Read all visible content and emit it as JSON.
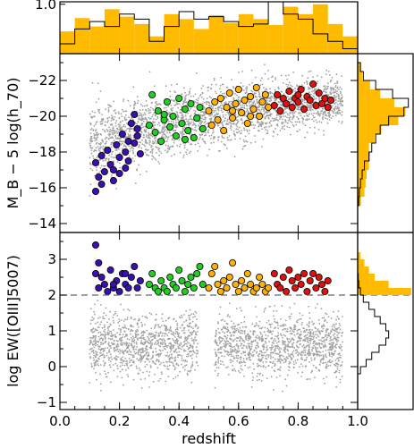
{
  "chart_data": [
    {
      "panel": "top-histogram",
      "type": "histogram",
      "xlim": [
        0.0,
        1.0
      ],
      "ylim": [
        0.0,
        1.05
      ],
      "y_ticks": [
        {
          "v": 1.0,
          "label": "1.0"
        }
      ],
      "bin_edges": [
        0.0,
        0.05,
        0.1,
        0.15,
        0.2,
        0.25,
        0.3,
        0.35,
        0.4,
        0.45,
        0.5,
        0.55,
        0.6,
        0.65,
        0.7,
        0.75,
        0.8,
        0.85,
        0.9,
        0.95,
        1.0
      ],
      "series": [
        {
          "fill": "#FFBB00",
          "values": [
            0.45,
            0.72,
            0.55,
            0.9,
            0.75,
            0.6,
            0.35,
            0.8,
            0.7,
            0.5,
            0.78,
            0.62,
            0.8,
            0.7,
            0.58,
            0.95,
            0.8,
            1.0,
            0.6,
            0.35
          ]
        },
        {
          "stroke": "#000000",
          "values": [
            0.2,
            0.5,
            0.65,
            0.55,
            0.8,
            0.7,
            0.25,
            0.55,
            0.85,
            0.7,
            0.75,
            0.65,
            0.55,
            0.6,
            1.05,
            0.8,
            0.7,
            0.4,
            0.25,
            0.1
          ]
        }
      ]
    },
    {
      "panel": "absolute-magnitude-scatter",
      "type": "scatter",
      "xlim": [
        0.0,
        1.0
      ],
      "ylim": [
        -13.5,
        -23.5
      ],
      "ylabel": "M_B − 5 log(h_70)",
      "y_ticks": [
        {
          "v": -22,
          "label": "−22"
        },
        {
          "v": -20,
          "label": "−20"
        },
        {
          "v": -18,
          "label": "−18"
        },
        {
          "v": -16,
          "label": "−16"
        },
        {
          "v": -14,
          "label": "−14"
        }
      ],
      "background_color": "#A0A0A0",
      "series": [
        {
          "color": "#3A10B0",
          "xrange": [
            0.11,
            0.27
          ],
          "points": [
            [
              0.12,
              -17.4
            ],
            [
              0.13,
              -16.6
            ],
            [
              0.12,
              -15.8
            ],
            [
              0.14,
              -17.8
            ],
            [
              0.15,
              -16.9
            ],
            [
              0.16,
              -18.1
            ],
            [
              0.17,
              -17.3
            ],
            [
              0.18,
              -16.4
            ],
            [
              0.19,
              -18.4
            ],
            [
              0.2,
              -17.7
            ],
            [
              0.21,
              -19.0
            ],
            [
              0.22,
              -17.1
            ],
            [
              0.23,
              -18.6
            ],
            [
              0.24,
              -19.6
            ],
            [
              0.25,
              -20.1
            ],
            [
              0.26,
              -18.9
            ],
            [
              0.27,
              -17.9
            ],
            [
              0.18,
              -17.0
            ],
            [
              0.22,
              -18.0
            ],
            [
              0.25,
              -18.5
            ],
            [
              0.14,
              -16.2
            ],
            [
              0.2,
              -16.8
            ],
            [
              0.23,
              -17.5
            ],
            [
              0.26,
              -19.3
            ]
          ]
        },
        {
          "color": "#20D020",
          "xrange": [
            0.3,
            0.48
          ],
          "points": [
            [
              0.3,
              -19.5
            ],
            [
              0.31,
              -21.2
            ],
            [
              0.32,
              -19.1
            ],
            [
              0.33,
              -20.3
            ],
            [
              0.34,
              -18.6
            ],
            [
              0.35,
              -19.8
            ],
            [
              0.36,
              -20.8
            ],
            [
              0.37,
              -19.4
            ],
            [
              0.38,
              -20.0
            ],
            [
              0.39,
              -18.9
            ],
            [
              0.4,
              -21.0
            ],
            [
              0.41,
              -19.6
            ],
            [
              0.42,
              -20.4
            ],
            [
              0.43,
              -19.2
            ],
            [
              0.44,
              -20.7
            ],
            [
              0.45,
              -18.8
            ],
            [
              0.46,
              -19.9
            ],
            [
              0.47,
              -20.5
            ],
            [
              0.48,
              -19.3
            ],
            [
              0.35,
              -20.1
            ],
            [
              0.42,
              -18.7
            ]
          ]
        },
        {
          "color": "#FFB000",
          "xrange": [
            0.5,
            0.7
          ],
          "points": [
            [
              0.5,
              -20.3
            ],
            [
              0.51,
              -19.5
            ],
            [
              0.52,
              -20.8
            ],
            [
              0.53,
              -19.8
            ],
            [
              0.54,
              -21.0
            ],
            [
              0.55,
              -19.2
            ],
            [
              0.56,
              -20.5
            ],
            [
              0.57,
              -21.3
            ],
            [
              0.58,
              -19.9
            ],
            [
              0.59,
              -20.7
            ],
            [
              0.6,
              -21.5
            ],
            [
              0.61,
              -20.2
            ],
            [
              0.62,
              -20.9
            ],
            [
              0.63,
              -19.6
            ],
            [
              0.64,
              -21.1
            ],
            [
              0.65,
              -20.4
            ],
            [
              0.66,
              -21.6
            ],
            [
              0.67,
              -20.0
            ],
            [
              0.68,
              -20.8
            ],
            [
              0.69,
              -21.2
            ],
            [
              0.7,
              -20.5
            ],
            [
              0.58,
              -20.3
            ],
            [
              0.64,
              -20.0
            ]
          ]
        },
        {
          "color": "#E01010",
          "xrange": [
            0.72,
            0.92
          ],
          "points": [
            [
              0.72,
              -20.6
            ],
            [
              0.73,
              -21.2
            ],
            [
              0.74,
              -20.3
            ],
            [
              0.75,
              -21.0
            ],
            [
              0.76,
              -20.7
            ],
            [
              0.77,
              -21.4
            ],
            [
              0.78,
              -20.5
            ],
            [
              0.79,
              -21.0
            ],
            [
              0.8,
              -20.8
            ],
            [
              0.81,
              -21.5
            ],
            [
              0.82,
              -20.4
            ],
            [
              0.83,
              -21.1
            ],
            [
              0.84,
              -20.9
            ],
            [
              0.85,
              -21.8
            ],
            [
              0.86,
              -20.6
            ],
            [
              0.87,
              -21.3
            ],
            [
              0.88,
              -20.7
            ],
            [
              0.89,
              -21.0
            ],
            [
              0.9,
              -20.5
            ],
            [
              0.91,
              -20.9
            ],
            [
              0.8,
              -21.2
            ]
          ]
        }
      ]
    },
    {
      "panel": "magnitude-histogram",
      "type": "histogram",
      "orientation": "horizontal",
      "ylim": [
        -13.5,
        -23.5
      ],
      "bin_edges": [
        -23.0,
        -22.5,
        -22.0,
        -21.5,
        -21.0,
        -20.5,
        -20.0,
        -19.5,
        -19.0,
        -18.5,
        -18.0,
        -17.5,
        -17.0,
        -16.5,
        -16.0,
        -15.5,
        -15.0
      ],
      "series": [
        {
          "fill": "#FFBB00",
          "values": [
            0.05,
            0.08,
            0.22,
            0.4,
            0.65,
            0.85,
            0.72,
            0.42,
            0.3,
            0.2,
            0.22,
            0.2,
            0.16,
            0.14,
            0.12,
            0.06
          ]
        },
        {
          "stroke": "#000000",
          "values": [
            0.05,
            0.1,
            0.32,
            0.62,
            0.9,
            0.82,
            0.55,
            0.4,
            0.32,
            0.25,
            0.2,
            0.12,
            0.08,
            0.05,
            0.03,
            0.02
          ]
        }
      ]
    },
    {
      "panel": "equivalent-width-scatter",
      "type": "scatter",
      "xlim": [
        0.0,
        1.0
      ],
      "ylim": [
        -1.2,
        3.75
      ],
      "xlabel": "redshift",
      "ylabel": "log EW([OIII]5007)",
      "x_ticks": [
        {
          "v": 0.0,
          "label": "0.0"
        },
        {
          "v": 0.2,
          "label": "0.2"
        },
        {
          "v": 0.4,
          "label": "0.4"
        },
        {
          "v": 0.6,
          "label": "0.6"
        },
        {
          "v": 0.8,
          "label": "0.8"
        },
        {
          "v": 1.0,
          "label": "1.0"
        }
      ],
      "y_ticks": [
        {
          "v": 3,
          "label": "3"
        },
        {
          "v": 2,
          "label": "2"
        },
        {
          "v": 1,
          "label": "1"
        },
        {
          "v": 0,
          "label": "0"
        },
        {
          "v": -1,
          "label": "−1"
        }
      ],
      "reference_line": {
        "y": 2.0,
        "style": "dashed"
      },
      "background_color": "#A0A0A0",
      "series": [
        {
          "color": "#3A10B0",
          "xrange": [
            0.11,
            0.27
          ],
          "points": [
            [
              0.12,
              3.4
            ],
            [
              0.12,
              2.6
            ],
            [
              0.13,
              2.2
            ],
            [
              0.14,
              2.5
            ],
            [
              0.15,
              2.3
            ],
            [
              0.16,
              2.1
            ],
            [
              0.17,
              2.7
            ],
            [
              0.18,
              2.2
            ],
            [
              0.19,
              2.4
            ],
            [
              0.2,
              2.1
            ],
            [
              0.21,
              2.6
            ],
            [
              0.22,
              2.3
            ],
            [
              0.23,
              2.2
            ],
            [
              0.24,
              2.5
            ],
            [
              0.25,
              2.8
            ],
            [
              0.26,
              2.2
            ],
            [
              0.27,
              2.4
            ],
            [
              0.13,
              2.9
            ],
            [
              0.18,
              2.3
            ],
            [
              0.22,
              2.6
            ]
          ]
        },
        {
          "color": "#20D020",
          "xrange": [
            0.3,
            0.48
          ],
          "points": [
            [
              0.3,
              2.3
            ],
            [
              0.31,
              2.6
            ],
            [
              0.32,
              2.2
            ],
            [
              0.33,
              2.1
            ],
            [
              0.34,
              2.4
            ],
            [
              0.35,
              2.2
            ],
            [
              0.36,
              2.1
            ],
            [
              0.37,
              2.5
            ],
            [
              0.38,
              2.3
            ],
            [
              0.39,
              2.2
            ],
            [
              0.4,
              2.7
            ],
            [
              0.41,
              2.4
            ],
            [
              0.42,
              2.1
            ],
            [
              0.43,
              2.3
            ],
            [
              0.44,
              2.5
            ],
            [
              0.45,
              2.2
            ],
            [
              0.46,
              2.6
            ],
            [
              0.47,
              2.8
            ],
            [
              0.48,
              2.3
            ]
          ]
        },
        {
          "color": "#FFB000",
          "xrange": [
            0.5,
            0.7
          ],
          "points": [
            [
              0.5,
              2.2
            ],
            [
              0.51,
              2.6
            ],
            [
              0.52,
              2.8
            ],
            [
              0.53,
              2.3
            ],
            [
              0.54,
              2.1
            ],
            [
              0.55,
              2.4
            ],
            [
              0.56,
              2.2
            ],
            [
              0.57,
              2.5
            ],
            [
              0.58,
              2.9
            ],
            [
              0.59,
              2.3
            ],
            [
              0.6,
              2.1
            ],
            [
              0.61,
              2.4
            ],
            [
              0.62,
              2.2
            ],
            [
              0.63,
              2.6
            ],
            [
              0.64,
              2.3
            ],
            [
              0.65,
              2.1
            ],
            [
              0.66,
              2.2
            ],
            [
              0.67,
              2.5
            ],
            [
              0.68,
              2.3
            ],
            [
              0.69,
              2.1
            ],
            [
              0.7,
              2.2
            ]
          ]
        },
        {
          "color": "#E01010",
          "xrange": [
            0.72,
            0.92
          ],
          "points": [
            [
              0.72,
              2.6
            ],
            [
              0.73,
              2.3
            ],
            [
              0.74,
              2.2
            ],
            [
              0.75,
              2.5
            ],
            [
              0.76,
              2.1
            ],
            [
              0.77,
              2.7
            ],
            [
              0.78,
              2.4
            ],
            [
              0.79,
              2.2
            ],
            [
              0.8,
              2.5
            ],
            [
              0.81,
              2.3
            ],
            [
              0.82,
              2.6
            ],
            [
              0.83,
              2.1
            ],
            [
              0.84,
              2.4
            ],
            [
              0.85,
              2.6
            ],
            [
              0.86,
              2.2
            ],
            [
              0.87,
              2.5
            ],
            [
              0.88,
              2.3
            ],
            [
              0.89,
              2.1
            ],
            [
              0.9,
              2.4
            ]
          ]
        }
      ]
    },
    {
      "panel": "equivalent-width-histogram",
      "type": "histogram",
      "orientation": "horizontal",
      "ylim": [
        -1.2,
        3.75
      ],
      "bin_edges": [
        -0.2,
        0.0,
        0.2,
        0.4,
        0.6,
        0.8,
        1.0,
        1.2,
        1.4,
        1.6,
        1.8,
        2.0,
        2.2,
        2.4,
        2.6,
        2.8,
        3.0,
        3.2
      ],
      "series": [
        {
          "fill": "#FFBB00",
          "values": [
            0,
            0,
            0,
            0,
            0,
            0,
            0,
            0,
            0,
            0,
            0,
            0.95,
            0.55,
            0.3,
            0.2,
            0.12,
            0.05
          ]
        },
        {
          "stroke": "#000000",
          "values": [
            0.05,
            0.15,
            0.25,
            0.38,
            0.5,
            0.55,
            0.5,
            0.4,
            0.3,
            0.2,
            0.1,
            0.05,
            0.02,
            0.01,
            0,
            0,
            0
          ]
        }
      ]
    }
  ]
}
